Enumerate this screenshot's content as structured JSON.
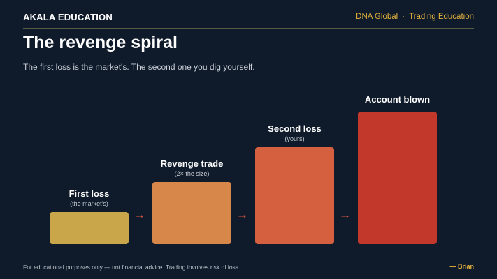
{
  "header": {
    "brand": "AKALA EDUCATION",
    "nav": [
      "DNA Global",
      "Trading Education"
    ],
    "nav_separator": "·"
  },
  "title": "The revenge spiral",
  "subtitle": "The first loss is the market's. The second one you dig yourself.",
  "steps": [
    {
      "label": "First loss",
      "sublabel": "(the market's)",
      "color": "#c9a64a",
      "relative_size": 0.24
    },
    {
      "label": "Revenge trade",
      "sublabel": "(2× the size)",
      "color": "#d8874a",
      "relative_size": 0.47
    },
    {
      "label": "Second loss",
      "sublabel": "(yours)",
      "color": "#d5603f",
      "relative_size": 0.73
    },
    {
      "label": "Account blown",
      "sublabel": "",
      "color": "#c2382a",
      "relative_size": 1.0
    }
  ],
  "arrow_glyph": "→",
  "footer": {
    "disclaimer": "For educational purposes only — not financial advice. Trading involves risk of loss.",
    "signature": "— Brian"
  }
}
